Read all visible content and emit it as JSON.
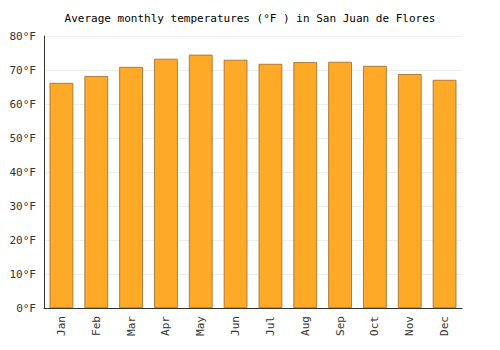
{
  "chart_data": {
    "type": "bar",
    "title": "Average monthly temperatures (°F ) in San Juan de Flores",
    "categories": [
      "Jan",
      "Feb",
      "Mar",
      "Apr",
      "May",
      "Jun",
      "Jul",
      "Aug",
      "Sep",
      "Oct",
      "Nov",
      "Dec"
    ],
    "values": [
      66.2,
      68.2,
      70.9,
      73.3,
      74.5,
      73.0,
      71.8,
      72.3,
      72.4,
      71.2,
      68.8,
      67.1
    ],
    "color": "#ffa929",
    "ylim": [
      0,
      80
    ],
    "yticks": [
      {
        "value": 0,
        "label": "0°F"
      },
      {
        "value": 10,
        "label": "10°F"
      },
      {
        "value": 20,
        "label": "20°F"
      },
      {
        "value": 30,
        "label": "30°F"
      },
      {
        "value": 40,
        "label": "40°F"
      },
      {
        "value": 50,
        "label": "50°F"
      },
      {
        "value": 60,
        "label": "60°F"
      },
      {
        "value": 70,
        "label": "70°F"
      },
      {
        "value": 80,
        "label": "80°F"
      }
    ],
    "grid": true
  }
}
